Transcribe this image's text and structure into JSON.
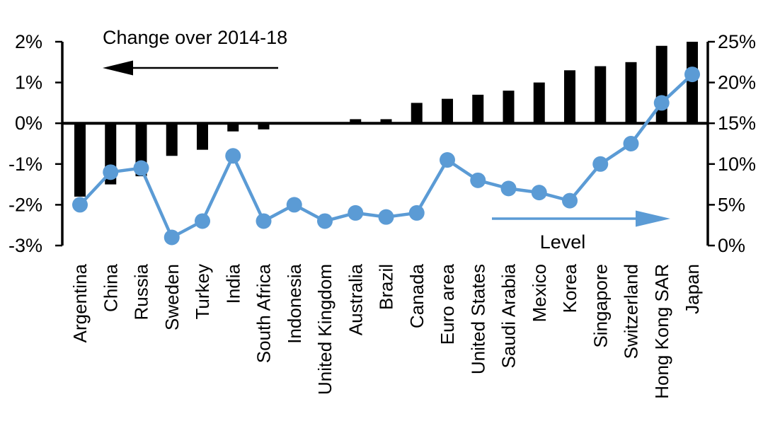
{
  "chart_data": {
    "type": "bar",
    "subtype": "dual-axis bar + line combo",
    "title": "",
    "categories": [
      "Argentina",
      "China",
      "Russia",
      "Sweden",
      "Turkey",
      "India",
      "South Africa",
      "Indonesia",
      "United Kingdom",
      "Australia",
      "Brazil",
      "Canada",
      "Euro area",
      "United States",
      "Saudi Arabia",
      "Mexico",
      "Korea",
      "Singapore",
      "Switzerland",
      "Hong Kong SAR",
      "Japan"
    ],
    "series": [
      {
        "name": "Change over 2014-18",
        "type": "bar",
        "axis": "left",
        "color": "#000000",
        "unit": "%",
        "values": [
          -1.8,
          -1.5,
          -1.3,
          -0.8,
          -0.65,
          -0.2,
          -0.15,
          0,
          0,
          0.1,
          0.1,
          0.5,
          0.6,
          0.7,
          0.8,
          1.0,
          1.3,
          1.4,
          1.5,
          1.9,
          2.0
        ]
      },
      {
        "name": "Level",
        "type": "line",
        "axis": "right",
        "color": "#5B9BD5",
        "unit": "%",
        "values": [
          5,
          9,
          9.5,
          1,
          3,
          11,
          3,
          5,
          3,
          4,
          3.5,
          4,
          10.5,
          8,
          7,
          6.5,
          5.5,
          10,
          12.5,
          17.5,
          21
        ]
      }
    ],
    "left_axis": {
      "tick_labels": [
        "2%",
        "1%",
        "0%",
        "-1%",
        "-2%",
        "-3%"
      ],
      "tick_values": [
        2,
        1,
        0,
        -1,
        -2,
        -3
      ],
      "min": -3,
      "max": 2
    },
    "right_axis": {
      "tick_labels": [
        "25%",
        "20%",
        "15%",
        "10%",
        "5%",
        "0%"
      ],
      "tick_values": [
        25,
        20,
        15,
        10,
        5,
        0
      ],
      "min": 0,
      "max": 25
    },
    "annotations": [
      {
        "text": "Change over 2014-18",
        "arrow_direction": "left",
        "color": "#000000"
      },
      {
        "text": "Level",
        "arrow_direction": "right",
        "color": "#5B9BD5"
      }
    ],
    "grid": false,
    "legend_position": "in-plot text annotations with arrows"
  }
}
